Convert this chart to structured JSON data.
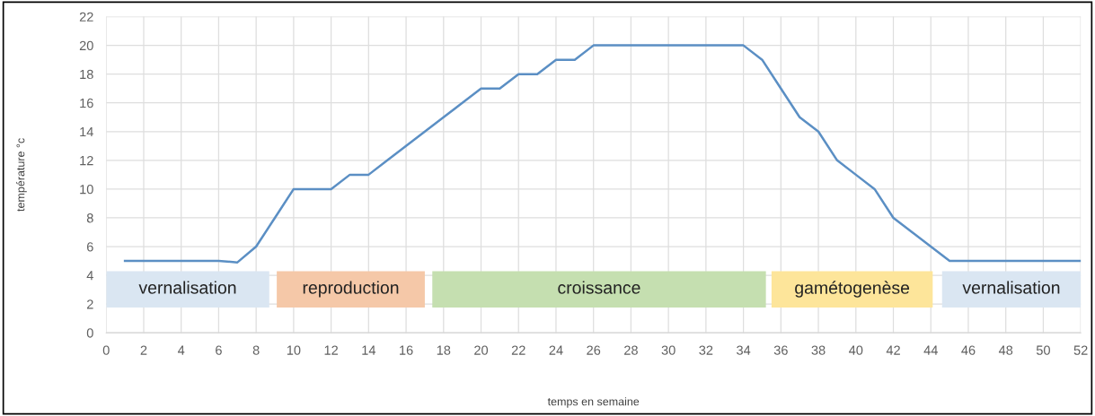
{
  "chart_data": {
    "type": "line",
    "xlabel": "temps en semaine",
    "ylabel": "température °c",
    "x": [
      1,
      2,
      3,
      4,
      5,
      6,
      7,
      8,
      9,
      10,
      11,
      12,
      13,
      14,
      15,
      16,
      17,
      18,
      19,
      20,
      21,
      22,
      23,
      24,
      25,
      26,
      27,
      28,
      29,
      30,
      31,
      32,
      33,
      34,
      35,
      36,
      37,
      38,
      39,
      40,
      41,
      42,
      43,
      44,
      45,
      46,
      47,
      48,
      49,
      50,
      51,
      52
    ],
    "series": [
      {
        "color": "#5b8fc4",
        "values": [
          5,
          5,
          5,
          5,
          5,
          5,
          4.9,
          6,
          8,
          10,
          10,
          10,
          11,
          11,
          12,
          13,
          14,
          15,
          16,
          17,
          17,
          18,
          18,
          19,
          19,
          20,
          20,
          20,
          20,
          20,
          20,
          20,
          20,
          20,
          19,
          17,
          15,
          14,
          12,
          11,
          10,
          8,
          7,
          6,
          5,
          5,
          5,
          5,
          5,
          5,
          5,
          5
        ]
      }
    ],
    "xlim": [
      0,
      52
    ],
    "xticks": [
      0,
      2,
      4,
      6,
      8,
      10,
      12,
      14,
      16,
      18,
      20,
      22,
      24,
      26,
      28,
      30,
      32,
      34,
      36,
      38,
      40,
      42,
      44,
      46,
      48,
      50,
      52
    ],
    "ylim": [
      0,
      22
    ],
    "yticks": [
      0,
      2,
      4,
      6,
      8,
      10,
      12,
      14,
      16,
      18,
      20,
      22
    ],
    "grid": true,
    "marker": "none",
    "line_style": "solid",
    "legend": false,
    "bands": [
      {
        "axis": "x",
        "from": 0,
        "to": 8.7,
        "label": "vernalisation",
        "color": "#dae6f2"
      },
      {
        "axis": "x",
        "from": 9.1,
        "to": 17,
        "label": "reproduction",
        "color": "#f5c8a8"
      },
      {
        "axis": "x",
        "from": 17.4,
        "to": 35.2,
        "label": "croissance",
        "color": "#c5dfb0"
      },
      {
        "axis": "x",
        "from": 35.5,
        "to": 44.1,
        "label": "gamétogenèse",
        "color": "#fde59a"
      },
      {
        "axis": "x",
        "from": 44.6,
        "to": 52,
        "label": "vernalisation",
        "color": "#dae6f2"
      }
    ]
  }
}
